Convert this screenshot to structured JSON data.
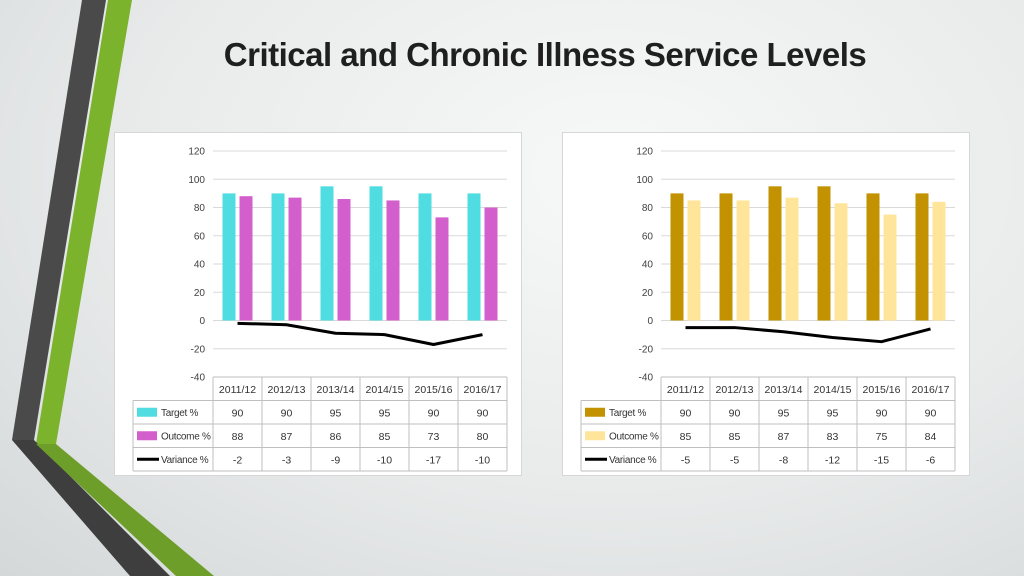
{
  "slide": {
    "title": "Critical and Chronic Illness Service Levels"
  },
  "chart_data": [
    {
      "type": "bar",
      "categories": [
        "2011/12",
        "2012/13",
        "2013/14",
        "2014/15",
        "2015/16",
        "2016/17"
      ],
      "series": [
        {
          "name": "Target %",
          "kind": "bar",
          "color": "#4fdde2",
          "values": [
            90,
            90,
            95,
            95,
            90,
            90
          ]
        },
        {
          "name": "Outcome %",
          "kind": "bar",
          "color": "#d35fcd",
          "values": [
            88,
            87,
            86,
            85,
            73,
            80
          ]
        },
        {
          "name": "Variance %",
          "kind": "line",
          "color": "#000000",
          "values": [
            -2,
            -3,
            -9,
            -10,
            -17,
            -10
          ]
        }
      ],
      "yticks": [
        120,
        100,
        80,
        60,
        40,
        20,
        0,
        -20,
        -40
      ],
      "ylim": [
        -40,
        120
      ],
      "grid": true,
      "legend": "data-table"
    },
    {
      "type": "bar",
      "categories": [
        "2011/12",
        "2012/13",
        "2013/14",
        "2014/15",
        "2015/16",
        "2016/17"
      ],
      "series": [
        {
          "name": "Target %",
          "kind": "bar",
          "color": "#c39200",
          "values": [
            90,
            90,
            95,
            95,
            90,
            90
          ]
        },
        {
          "name": "Outcome %",
          "kind": "bar",
          "color": "#ffe59a",
          "values": [
            85,
            85,
            87,
            83,
            75,
            84
          ]
        },
        {
          "name": "Variance %",
          "kind": "line",
          "color": "#000000",
          "values": [
            -5,
            -5,
            -8,
            -12,
            -15,
            -6
          ]
        }
      ],
      "yticks": [
        120,
        100,
        80,
        60,
        40,
        20,
        0,
        -20,
        -40
      ],
      "ylim": [
        -40,
        120
      ],
      "grid": true,
      "legend": "data-table"
    }
  ]
}
